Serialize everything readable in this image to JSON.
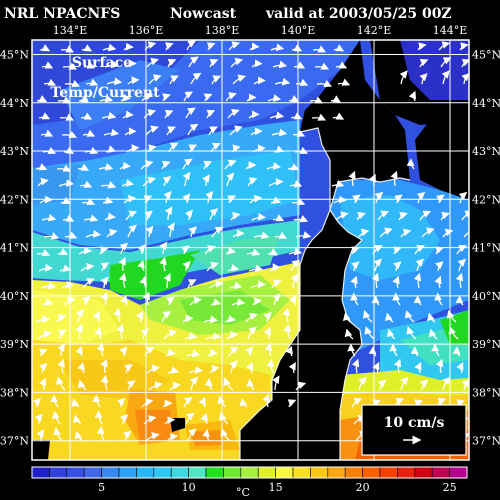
{
  "header": {
    "source": "NRL NPACNFS",
    "product": "Nowcast",
    "valid": "valid at 2003/05/25 00Z"
  },
  "map": {
    "overlay_line1": "Surface",
    "overlay_line2": "Temp/Current",
    "lon_labels": [
      "134°E",
      "136°E",
      "138°E",
      "140°E",
      "142°E",
      "144°E"
    ],
    "lat_labels": [
      "45°N",
      "44°N",
      "43°N",
      "42°N",
      "41°N",
      "40°N",
      "39°N",
      "38°N",
      "37°N"
    ],
    "lon_range": [
      133.0,
      144.5
    ],
    "lat_range": [
      36.6,
      45.3
    ]
  },
  "vector_legend": {
    "label": "10 cm/s",
    "speed_cm_s": 10
  },
  "colorbar": {
    "unit": "°C",
    "tick_labels": [
      "5",
      "10",
      "15",
      "20",
      "25"
    ],
    "tick_values": [
      5,
      10,
      15,
      20,
      25
    ],
    "colors": [
      "#2020c8",
      "#3040d8",
      "#3850e0",
      "#4068e8",
      "#3888f0",
      "#30a0f8",
      "#28b8f8",
      "#30c8f0",
      "#40d8e0",
      "#50e8c0",
      "#20e020",
      "#70e830",
      "#a8f040",
      "#e0f028",
      "#f8f840",
      "#f8e020",
      "#f8c818",
      "#f8a810",
      "#f88008",
      "#f86000",
      "#f84000",
      "#e82010",
      "#d00010",
      "#c00050",
      "#b80090"
    ]
  },
  "colors": {
    "land": "#000000",
    "grid": "#ffffff",
    "vectors": "#ffffff"
  }
}
